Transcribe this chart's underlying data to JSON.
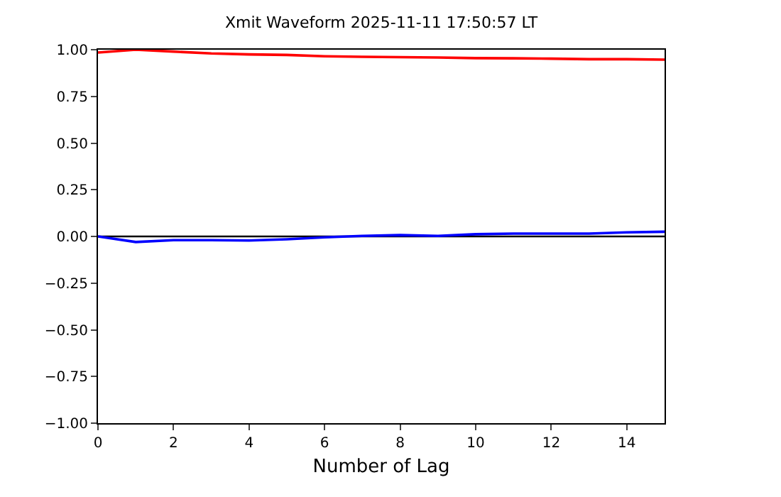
{
  "chart_data": {
    "type": "line",
    "title": "Xmit Waveform 2025-11-11 17:50:57 LT",
    "xlabel": "Number of Lag",
    "x": [
      0,
      1,
      2,
      3,
      4,
      5,
      6,
      7,
      8,
      9,
      10,
      11,
      12,
      13,
      14,
      15
    ],
    "series": [
      {
        "color": "#ff0000",
        "values": [
          0.985,
          1.0,
          0.99,
          0.98,
          0.975,
          0.972,
          0.965,
          0.962,
          0.96,
          0.958,
          0.955,
          0.954,
          0.952,
          0.949,
          0.949,
          0.947
        ]
      },
      {
        "color": "#0000ff",
        "values": [
          0,
          -0.03,
          -0.02,
          -0.02,
          -0.022,
          -0.015,
          -0.005,
          0.003,
          0.007,
          0.003,
          0.012,
          0.015,
          0.015,
          0.015,
          0.022,
          0.025
        ]
      }
    ],
    "ref_lines": [
      {
        "axis": "y",
        "value": 0,
        "color": "#000000"
      }
    ],
    "xlim": [
      0,
      15
    ],
    "xticks": [
      0,
      2,
      4,
      6,
      8,
      10,
      12,
      14
    ],
    "ylim": [
      -1,
      1
    ],
    "yticks": [
      {
        "value": -1,
        "label": "−1.00"
      },
      {
        "value": -0.75,
        "label": "−0.75"
      },
      {
        "value": -0.5,
        "label": "−0.50"
      },
      {
        "value": -0.25,
        "label": "−0.25"
      },
      {
        "value": 0,
        "label": "0.00"
      },
      {
        "value": 0.25,
        "label": "0.25"
      },
      {
        "value": 0.5,
        "label": "0.50"
      },
      {
        "value": 0.75,
        "label": "0.75"
      },
      {
        "value": 1,
        "label": "1.00"
      }
    ],
    "grid": false
  }
}
